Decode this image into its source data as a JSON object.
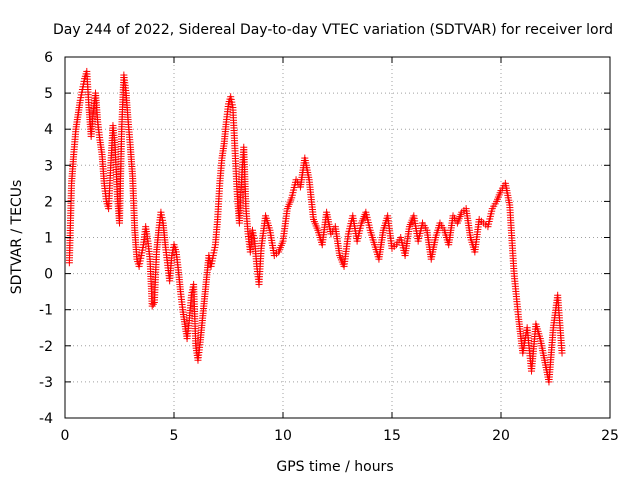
{
  "chart_data": {
    "type": "scatter",
    "title": "Day 244 of 2022, Sidereal Day-to-day VTEC variation (SDTVAR) for receiver lord",
    "xlabel": "GPS time / hours",
    "ylabel": "SDTVAR / TECUs",
    "xlim": [
      0,
      25
    ],
    "ylim": [
      -4,
      6
    ],
    "xticks": [
      0,
      5,
      10,
      15,
      20,
      25
    ],
    "yticks": [
      -4,
      -3,
      -2,
      -1,
      0,
      1,
      2,
      3,
      4,
      5,
      6
    ],
    "grid": true,
    "marker": "+",
    "color": "#ff0000",
    "series": [
      {
        "name": "SDTVAR",
        "x": [
          0.2,
          0.3,
          0.4,
          0.5,
          0.6,
          0.7,
          0.8,
          0.9,
          1.0,
          1.1,
          1.2,
          1.3,
          1.4,
          1.5,
          1.6,
          1.7,
          1.8,
          1.9,
          2.0,
          2.1,
          2.2,
          2.3,
          2.4,
          2.5,
          2.6,
          2.7,
          2.8,
          2.9,
          3.0,
          3.1,
          3.2,
          3.3,
          3.4,
          3.5,
          3.6,
          3.7,
          3.8,
          3.9,
          4.0,
          4.1,
          4.2,
          4.3,
          4.4,
          4.5,
          4.6,
          4.7,
          4.8,
          4.9,
          5.0,
          5.1,
          5.2,
          5.3,
          5.4,
          5.5,
          5.6,
          5.7,
          5.8,
          5.9,
          6.0,
          6.1,
          6.2,
          6.3,
          6.4,
          6.5,
          6.6,
          6.7,
          6.8,
          6.9,
          7.0,
          7.1,
          7.2,
          7.3,
          7.4,
          7.5,
          7.6,
          7.7,
          7.8,
          7.9,
          8.0,
          8.1,
          8.2,
          8.3,
          8.4,
          8.5,
          8.6,
          8.7,
          8.8,
          8.9,
          9.0,
          9.2,
          9.4,
          9.6,
          9.8,
          10.0,
          10.2,
          10.4,
          10.6,
          10.8,
          11.0,
          11.2,
          11.4,
          11.6,
          11.8,
          12.0,
          12.2,
          12.4,
          12.6,
          12.8,
          13.0,
          13.2,
          13.4,
          13.6,
          13.8,
          14.0,
          14.2,
          14.4,
          14.6,
          14.8,
          15.0,
          15.2,
          15.4,
          15.6,
          15.8,
          16.0,
          16.2,
          16.4,
          16.6,
          16.8,
          17.0,
          17.2,
          17.4,
          17.6,
          17.8,
          18.0,
          18.2,
          18.4,
          18.6,
          18.8,
          19.0,
          19.2,
          19.4,
          19.6,
          19.8,
          20.0,
          20.2,
          20.4,
          20.6,
          20.8,
          21.0,
          21.2,
          21.4,
          21.6,
          21.8,
          22.0,
          22.2,
          22.4,
          22.6,
          22.8
        ],
        "y": [
          0.3,
          2.5,
          3.3,
          4.0,
          4.4,
          4.8,
          5.1,
          5.4,
          5.6,
          4.6,
          3.8,
          4.5,
          5.0,
          4.2,
          3.7,
          3.3,
          2.5,
          2.0,
          1.8,
          3.0,
          4.1,
          3.5,
          2.2,
          1.4,
          4.0,
          5.5,
          5.0,
          4.2,
          3.5,
          2.7,
          1.2,
          0.4,
          0.2,
          0.5,
          0.8,
          1.3,
          0.9,
          0.4,
          -0.9,
          -0.8,
          0.6,
          1.2,
          1.7,
          1.4,
          0.8,
          0.3,
          -0.2,
          0.5,
          0.8,
          0.6,
          0.1,
          -0.5,
          -1.0,
          -1.4,
          -1.8,
          -1.3,
          -0.6,
          -0.3,
          -2.0,
          -2.4,
          -1.9,
          -1.3,
          -0.7,
          -0.1,
          0.5,
          0.2,
          0.5,
          0.8,
          1.5,
          2.5,
          3.2,
          3.6,
          4.2,
          4.7,
          4.9,
          4.6,
          3.4,
          2.2,
          1.4,
          2.6,
          3.5,
          1.8,
          1.1,
          0.6,
          1.2,
          0.9,
          0.2,
          -0.3,
          0.7,
          1.6,
          1.2,
          0.5,
          0.6,
          0.9,
          1.8,
          2.1,
          2.6,
          2.4,
          3.2,
          2.6,
          1.5,
          1.2,
          0.8,
          1.7,
          1.1,
          1.3,
          0.5,
          0.2,
          1.1,
          1.6,
          0.9,
          1.4,
          1.7,
          1.2,
          0.8,
          0.4,
          1.2,
          1.6,
          0.7,
          0.8,
          1.0,
          0.5,
          1.3,
          1.6,
          0.9,
          1.4,
          1.2,
          0.4,
          1.0,
          1.4,
          1.2,
          0.8,
          1.6,
          1.4,
          1.7,
          1.8,
          1.0,
          0.6,
          1.5,
          1.4,
          1.3,
          1.8,
          2.0,
          2.3,
          2.5,
          1.9,
          0.0,
          -1.2,
          -2.2,
          -1.5,
          -2.7,
          -1.4,
          -1.8,
          -2.4,
          -3.0,
          -1.5,
          -0.6,
          -2.2
        ]
      }
    ]
  }
}
